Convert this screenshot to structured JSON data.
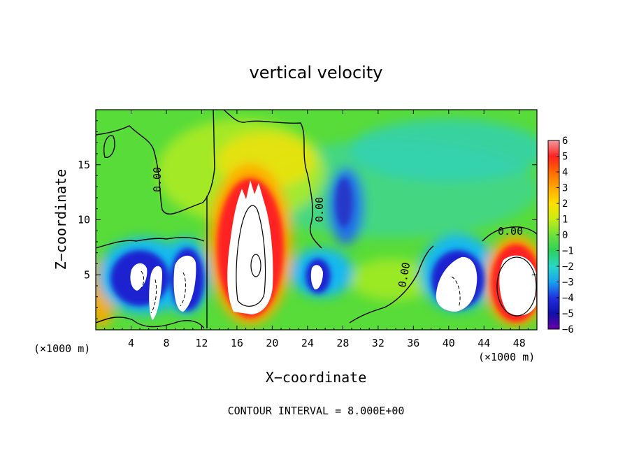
{
  "chart_data": {
    "type": "heatmap",
    "title": "vertical velocity",
    "xlabel": "X−coordinate",
    "ylabel": "Z−coordinate",
    "x_unit": "(×1000 m)",
    "xlim": [
      0,
      50
    ],
    "ylim": [
      0,
      20
    ],
    "x_ticks": [
      4,
      8,
      12,
      16,
      20,
      24,
      28,
      32,
      36,
      40,
      44,
      48
    ],
    "y_ticks": [
      5,
      10,
      15
    ],
    "colorbar": {
      "ticks": [
        6,
        5,
        4,
        3,
        2,
        1,
        0,
        -1,
        -2,
        -3,
        -4,
        -5,
        -6
      ],
      "labels": [
        "6",
        "5",
        "4",
        "3",
        "2",
        "1",
        "0",
        "−1",
        "−2",
        "−3",
        "−4",
        "−5",
        "−6"
      ],
      "colors": [
        "#f29a9a",
        "#ff2020",
        "#ff6a00",
        "#ffa800",
        "#ffe000",
        "#c8ec14",
        "#6ee03c",
        "#2cd05a",
        "#28d8c8",
        "#18a0f0",
        "#2030e0",
        "#1010a8",
        "#6a00a8"
      ]
    },
    "contour_labels": [
      "0.00",
      "0.00",
      "0.00",
      "0.00"
    ],
    "contour_interval_text": "CONTOUR INTERVAL = 8.000E+00",
    "features": [
      {
        "kind": "updraft",
        "x_range": [
          14.5,
          21.5
        ],
        "z_range": [
          0.5,
          16
        ],
        "peak": 6
      },
      {
        "kind": "updraft",
        "x_range": [
          45,
          50
        ],
        "z_range": [
          0.5,
          8.5
        ],
        "peak": 6
      },
      {
        "kind": "downdraft",
        "x_range": [
          3,
          8
        ],
        "z_range": [
          0.5,
          7
        ],
        "peak": -6
      },
      {
        "kind": "downdraft",
        "x_range": [
          8,
          12
        ],
        "z_range": [
          0.5,
          7.5
        ],
        "peak": -6
      },
      {
        "kind": "downdraft",
        "x_range": [
          23.5,
          27
        ],
        "z_range": [
          3,
          7
        ],
        "peak": -6
      },
      {
        "kind": "downdraft",
        "x_range": [
          37.5,
          43
        ],
        "z_range": [
          1,
          7.5
        ],
        "peak": -6
      },
      {
        "kind": "weak_downdraft",
        "x_range": [
          27,
          30
        ],
        "z_range": [
          9,
          14
        ],
        "peak": -4.5
      }
    ]
  }
}
